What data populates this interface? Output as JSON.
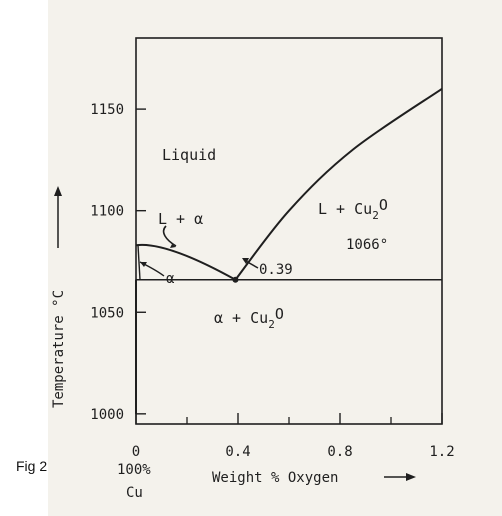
{
  "figure": {
    "caption": "Fig 2",
    "title": "",
    "colors": {
      "paper": "#f4f2ec",
      "ink": "#1f1f1f"
    }
  },
  "chart_data": {
    "type": "line",
    "title": "",
    "xlabel": "Weight % Oxygen",
    "ylabel": "Temperature °C",
    "x_ticks": [
      "0",
      "0.4",
      "0.8",
      "1.2"
    ],
    "y_ticks": [
      "1000",
      "1050",
      "1100",
      "1150"
    ],
    "xlim": [
      0,
      1.2
    ],
    "ylim": [
      995,
      1185
    ],
    "x_origin_label_line1": "100%",
    "x_origin_label_line2": "Cu",
    "eutectic_temperature_label": "1066°",
    "eutectic_composition_label": "0.39",
    "regions": {
      "liquid": "Liquid",
      "l_alpha": "L + α",
      "alpha": "α",
      "l_cu2o": "L + Cu",
      "l_cu2o_sub": "2",
      "l_cu2o_tail": "O",
      "alpha_cu2o": "α + Cu",
      "alpha_cu2o_sub": "2",
      "alpha_cu2o_tail": "O"
    },
    "series": [
      {
        "x": [
          0,
          0.39
        ],
        "y": [
          1083,
          1066
        ]
      },
      {
        "x": [
          0.39,
          0.6,
          0.85,
          1.2
        ],
        "y": [
          1066,
          1100,
          1130,
          1160
        ]
      },
      {
        "x": [
          0,
          1.2
        ],
        "y": [
          1066,
          1066
        ]
      },
      {
        "x": [
          0,
          0
        ],
        "y": [
          1066,
          1000
        ]
      }
    ]
  }
}
